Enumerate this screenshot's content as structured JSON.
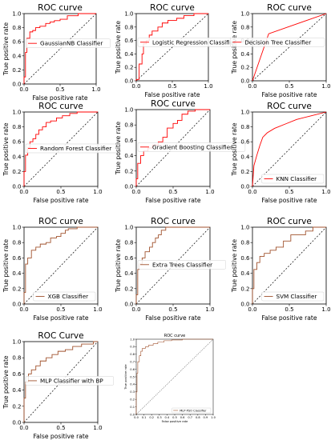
{
  "chart_data": [
    {
      "type": "line",
      "title": "ROC curve",
      "xlabel": "False positive rate",
      "ylabel": "True positive rate",
      "xlim": [
        0,
        1
      ],
      "ylim": [
        0,
        1
      ],
      "xticks": [
        "0.0",
        "0.5",
        "1.0"
      ],
      "yticks": [
        "0.0",
        "0.2",
        "0.4",
        "0.6",
        "0.8",
        "1.0"
      ],
      "legend_position": "upper-left",
      "diagonal": true,
      "series": [
        {
          "name": "GaussianNB Classifier",
          "color": "#ff0000",
          "x": [
            0.0,
            0.0,
            0.02,
            0.02,
            0.04,
            0.04,
            0.08,
            0.08,
            0.12,
            0.12,
            0.16,
            0.16,
            0.22,
            0.22,
            0.3,
            0.3,
            0.36,
            0.36,
            0.42,
            0.42,
            0.5,
            0.5,
            0.6,
            0.6,
            0.75,
            0.75,
            1.0
          ],
          "y": [
            0.0,
            0.1,
            0.1,
            0.45,
            0.45,
            0.65,
            0.65,
            0.74,
            0.74,
            0.76,
            0.76,
            0.8,
            0.8,
            0.82,
            0.82,
            0.86,
            0.86,
            0.88,
            0.88,
            0.9,
            0.9,
            0.92,
            0.92,
            0.97,
            0.97,
            1.0,
            1.0
          ]
        }
      ]
    },
    {
      "type": "line",
      "title": "ROC curve",
      "xlabel": "False positive rate",
      "ylabel": "True positive rate",
      "xlim": [
        0,
        1
      ],
      "ylim": [
        0,
        1
      ],
      "xticks": [
        "0.0",
        "0.5",
        "1.0"
      ],
      "yticks": [
        "0.0",
        "0.2",
        "0.4",
        "0.6",
        "0.8",
        "1.0"
      ],
      "legend_position": "upper-left",
      "diagonal": true,
      "series": [
        {
          "name": "Logistic Regression Classifier",
          "color": "#ff0000",
          "x": [
            0.0,
            0.0,
            0.04,
            0.04,
            0.08,
            0.08,
            0.1,
            0.1,
            0.14,
            0.14,
            0.18,
            0.18,
            0.22,
            0.22,
            0.3,
            0.3,
            0.36,
            0.36,
            0.44,
            0.44,
            0.56,
            0.56,
            0.66,
            0.66,
            0.8,
            0.8,
            1.0
          ],
          "y": [
            0.0,
            0.02,
            0.02,
            0.25,
            0.25,
            0.4,
            0.4,
            0.55,
            0.55,
            0.6,
            0.6,
            0.68,
            0.68,
            0.74,
            0.74,
            0.8,
            0.8,
            0.86,
            0.86,
            0.9,
            0.9,
            0.93,
            0.93,
            0.97,
            0.97,
            1.0,
            1.0
          ]
        }
      ]
    },
    {
      "type": "line",
      "title": "ROC curve",
      "xlabel": "False positive rate",
      "ylabel": "True positive rate",
      "xlim": [
        0,
        1
      ],
      "ylim": [
        0,
        1
      ],
      "xticks": [
        "0.0",
        "0.5",
        "1.0"
      ],
      "yticks": [
        "0.0",
        "0.2",
        "0.4",
        "0.6",
        "0.8",
        "1.0"
      ],
      "legend_position": "center-right",
      "diagonal": true,
      "series": [
        {
          "name": "Decision Tree Classifier",
          "color": "#ff0000",
          "x": [
            0.0,
            0.22,
            1.0
          ],
          "y": [
            0.0,
            0.7,
            1.0
          ]
        }
      ]
    },
    {
      "type": "line",
      "title": "ROC curve",
      "xlabel": "False positive rate",
      "ylabel": "True positive rate",
      "xlim": [
        0,
        1
      ],
      "ylim": [
        0,
        1
      ],
      "xticks": [
        "0.0",
        "0.5",
        "1.0"
      ],
      "yticks": [
        "0.0",
        "0.2",
        "0.4",
        "0.6",
        "0.8",
        "1.0"
      ],
      "legend_position": "center-left",
      "diagonal": true,
      "series": [
        {
          "name": "Random Forest Classifier",
          "color": "#ff0000",
          "x": [
            0.0,
            0.0,
            0.02,
            0.02,
            0.05,
            0.05,
            0.08,
            0.08,
            0.12,
            0.12,
            0.16,
            0.16,
            0.2,
            0.2,
            0.25,
            0.25,
            0.3,
            0.3,
            0.36,
            0.36,
            0.44,
            0.44,
            0.52,
            0.52,
            0.62,
            0.62,
            0.72,
            0.72,
            1.0
          ],
          "y": [
            0.0,
            0.2,
            0.2,
            0.42,
            0.42,
            0.52,
            0.52,
            0.6,
            0.6,
            0.64,
            0.64,
            0.7,
            0.7,
            0.76,
            0.76,
            0.8,
            0.8,
            0.86,
            0.86,
            0.88,
            0.88,
            0.92,
            0.92,
            0.95,
            0.95,
            0.98,
            0.98,
            1.0,
            1.0
          ]
        }
      ]
    },
    {
      "type": "line",
      "title": "ROC curve",
      "xlabel": "False positive rate",
      "ylabel": "True positive rate",
      "xlim": [
        0,
        1
      ],
      "ylim": [
        0,
        1
      ],
      "xticks": [
        "0.0",
        "0.5",
        "1.0"
      ],
      "yticks": [
        "0.0",
        "0.2",
        "0.4",
        "0.6",
        "0.8",
        "1.0"
      ],
      "legend_position": "center-left",
      "diagonal": true,
      "series": [
        {
          "name": "Gradient Boosting Classifier",
          "color": "#ff0000",
          "x": [
            0.0,
            0.0,
            0.02,
            0.02,
            0.06,
            0.06,
            0.1,
            0.1,
            0.16,
            0.16,
            0.22,
            0.22,
            0.3,
            0.3,
            0.36,
            0.36,
            0.42,
            0.42,
            0.5,
            0.5,
            0.56,
            0.56,
            0.62,
            0.62,
            0.7,
            0.7,
            0.8,
            0.8,
            1.0
          ],
          "y": [
            0.0,
            0.1,
            0.1,
            0.3,
            0.3,
            0.4,
            0.4,
            0.46,
            0.46,
            0.5,
            0.5,
            0.54,
            0.54,
            0.58,
            0.58,
            0.64,
            0.64,
            0.76,
            0.76,
            0.82,
            0.82,
            0.86,
            0.86,
            0.94,
            0.94,
            0.98,
            0.98,
            1.0,
            1.0
          ]
        }
      ]
    },
    {
      "type": "line",
      "title": "ROC curve",
      "xlabel": "False positive rate",
      "ylabel": "True positive rate",
      "xlim": [
        0,
        1
      ],
      "ylim": [
        0,
        1
      ],
      "xticks": [
        "0.0",
        "0.5",
        "1.0"
      ],
      "yticks": [
        "0.0",
        "0.2",
        "0.4",
        "0.6",
        "0.8",
        "1.0"
      ],
      "legend_position": "lower-right",
      "diagonal": true,
      "series": [
        {
          "name": "KNN Classifier",
          "color": "#ff0000",
          "x": [
            0.0,
            0.02,
            0.06,
            0.1,
            0.14,
            0.2,
            0.3,
            0.45,
            0.6,
            0.8,
            1.0
          ],
          "y": [
            0.0,
            0.28,
            0.42,
            0.55,
            0.66,
            0.72,
            0.78,
            0.84,
            0.9,
            0.95,
            1.0
          ]
        }
      ]
    },
    {
      "type": "line",
      "title": "ROC curve",
      "xlabel": "False positive rate",
      "ylabel": "True positive rate",
      "xlim": [
        0,
        1
      ],
      "ylim": [
        0,
        1
      ],
      "xticks": [
        "0.0",
        "0.5",
        "1.0"
      ],
      "yticks": [
        "0.0",
        "0.2",
        "0.4",
        "0.6",
        "0.8",
        "1.0"
      ],
      "legend_position": "lower-right",
      "diagonal": true,
      "series": [
        {
          "name": "XGB Classifier",
          "color": "#a0522d",
          "x": [
            0.0,
            0.0,
            0.02,
            0.02,
            0.05,
            0.05,
            0.1,
            0.1,
            0.16,
            0.16,
            0.22,
            0.22,
            0.3,
            0.3,
            0.36,
            0.36,
            0.44,
            0.44,
            0.5,
            0.5,
            0.56,
            0.56,
            0.6,
            0.6,
            0.72,
            0.72,
            1.0
          ],
          "y": [
            0.0,
            0.15,
            0.15,
            0.52,
            0.52,
            0.6,
            0.6,
            0.7,
            0.7,
            0.74,
            0.74,
            0.78,
            0.78,
            0.8,
            0.8,
            0.86,
            0.86,
            0.88,
            0.88,
            0.92,
            0.92,
            0.96,
            0.96,
            0.98,
            0.98,
            1.0,
            1.0
          ]
        }
      ]
    },
    {
      "type": "line",
      "title": "ROC curve",
      "xlabel": "False positive rate",
      "ylabel": "True positive rate",
      "xlim": [
        0,
        1
      ],
      "ylim": [
        0,
        1
      ],
      "xticks": [
        "0.0",
        "0.5",
        "1.0"
      ],
      "yticks": [
        "0.0",
        "0.2",
        "0.4",
        "0.6",
        "0.8",
        "1.0"
      ],
      "legend_position": "center-left",
      "diagonal": true,
      "series": [
        {
          "name": "Extra Trees Classifier",
          "color": "#a0522d",
          "x": [
            0.0,
            0.0,
            0.02,
            0.02,
            0.04,
            0.04,
            0.08,
            0.08,
            0.12,
            0.12,
            0.18,
            0.18,
            0.22,
            0.22,
            0.26,
            0.26,
            0.3,
            0.3,
            0.34,
            0.34,
            0.4,
            0.4,
            1.0
          ],
          "y": [
            0.0,
            0.12,
            0.12,
            0.45,
            0.45,
            0.52,
            0.52,
            0.6,
            0.6,
            0.68,
            0.68,
            0.74,
            0.74,
            0.8,
            0.8,
            0.86,
            0.86,
            0.9,
            0.9,
            0.96,
            0.96,
            1.0,
            1.0
          ]
        }
      ]
    },
    {
      "type": "line",
      "title": "ROC curve",
      "xlabel": "False positive rate",
      "ylabel": "True positive rate",
      "xlim": [
        0,
        1
      ],
      "ylim": [
        0,
        1
      ],
      "xticks": [
        "0.0",
        "0.5",
        "1.0"
      ],
      "yticks": [
        "0.0",
        "0.2",
        "0.4",
        "0.6",
        "0.8",
        "1.0"
      ],
      "legend_position": "lower-right",
      "diagonal": true,
      "series": [
        {
          "name": "SVM Classifier",
          "color": "#a0522d",
          "x": [
            0.0,
            0.0,
            0.02,
            0.02,
            0.06,
            0.06,
            0.1,
            0.1,
            0.16,
            0.16,
            0.24,
            0.24,
            0.32,
            0.32,
            0.42,
            0.42,
            0.52,
            0.52,
            0.72,
            0.72,
            0.82,
            0.82,
            1.0
          ],
          "y": [
            0.0,
            0.2,
            0.2,
            0.45,
            0.45,
            0.54,
            0.54,
            0.62,
            0.62,
            0.66,
            0.66,
            0.7,
            0.7,
            0.74,
            0.74,
            0.82,
            0.82,
            0.9,
            0.9,
            0.95,
            0.95,
            1.0,
            1.0
          ]
        }
      ]
    },
    {
      "type": "line",
      "title": "ROC Curve",
      "xlabel": "False positive rate",
      "ylabel": "True positive rate",
      "xlim": [
        0,
        1
      ],
      "ylim": [
        0,
        1
      ],
      "xticks": [
        "0.0",
        "0.5",
        "1.0"
      ],
      "yticks": [
        "0.0",
        "0.2",
        "0.4",
        "0.6",
        "0.8",
        "1.0"
      ],
      "legend_position": "center-left",
      "diagonal": true,
      "series": [
        {
          "name": "MLP Classifier with BP",
          "color": "#a0522d",
          "x": [
            0.0,
            0.0,
            0.02,
            0.02,
            0.06,
            0.06,
            0.1,
            0.1,
            0.16,
            0.16,
            0.22,
            0.22,
            0.3,
            0.3,
            0.38,
            0.38,
            0.46,
            0.46,
            0.56,
            0.56,
            0.66,
            0.66,
            0.78,
            0.78,
            0.94,
            0.94,
            1.0
          ],
          "y": [
            0.0,
            0.3,
            0.3,
            0.5,
            0.5,
            0.6,
            0.6,
            0.65,
            0.65,
            0.7,
            0.7,
            0.76,
            0.76,
            0.8,
            0.8,
            0.84,
            0.84,
            0.88,
            0.88,
            0.9,
            0.9,
            0.94,
            0.94,
            0.97,
            0.97,
            1.0,
            1.0
          ]
        }
      ]
    },
    {
      "type": "line",
      "title": "ROC curve",
      "xlabel": "False positive rate",
      "ylabel": "True positive rate",
      "xlim": [
        0,
        1
      ],
      "ylim": [
        0,
        1
      ],
      "xticks": [
        "0.0",
        "0.1",
        "0.2",
        "0.3",
        "0.4",
        "0.5",
        "0.6",
        "0.7",
        "0.8",
        "0.9",
        "1.0"
      ],
      "yticks": [
        "0.0",
        "0.1",
        "0.2",
        "0.3",
        "0.4",
        "0.5",
        "0.6",
        "0.7",
        "0.8",
        "0.9",
        "1.0"
      ],
      "legend_position": "lower-right",
      "diagonal": true,
      "small": true,
      "series": [
        {
          "name": "MLP-PSO Classifier",
          "color": "#a0522d",
          "x": [
            0.0,
            0.0,
            0.01,
            0.01,
            0.02,
            0.02,
            0.04,
            0.04,
            0.06,
            0.06,
            0.08,
            0.08,
            0.12,
            0.12,
            0.16,
            0.16,
            0.22,
            0.22,
            0.28,
            0.28,
            0.36,
            0.36,
            0.46,
            0.46,
            0.6,
            0.6,
            1.0
          ],
          "y": [
            0.0,
            0.3,
            0.3,
            0.55,
            0.55,
            0.7,
            0.7,
            0.78,
            0.78,
            0.84,
            0.84,
            0.88,
            0.88,
            0.9,
            0.9,
            0.92,
            0.92,
            0.94,
            0.94,
            0.96,
            0.96,
            0.98,
            0.98,
            0.99,
            0.99,
            1.0,
            1.0
          ]
        }
      ]
    }
  ]
}
